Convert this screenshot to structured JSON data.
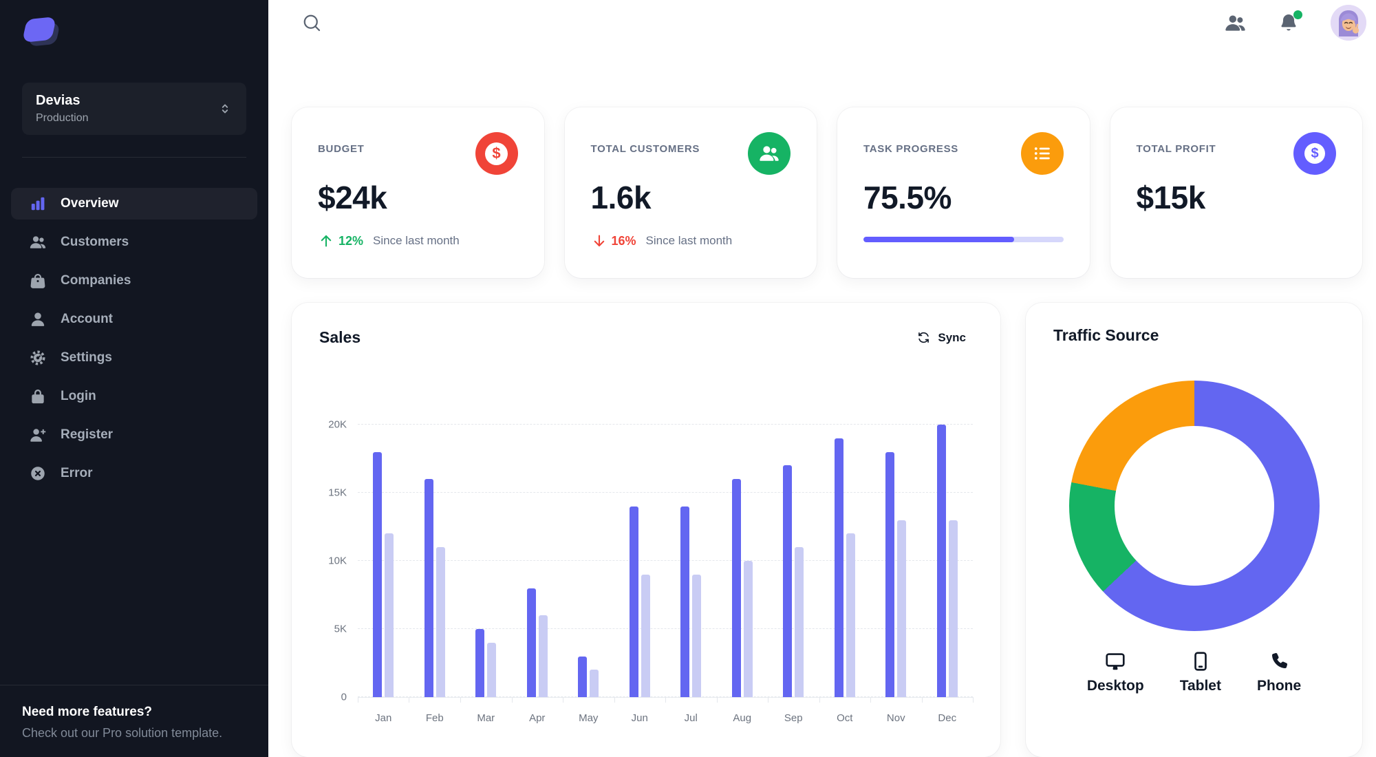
{
  "colors": {
    "primary": "#6366F1",
    "primary_light": "#C9CCF4",
    "sidebar_bg": "#121621",
    "red": "#F04438",
    "green": "#16B364",
    "orange": "#FB9C0C",
    "indigo": "#635DFF",
    "text_dark": "#111927",
    "text_muted": "#667085"
  },
  "sidebar": {
    "workspace": {
      "name": "Devias",
      "environment": "Production"
    },
    "items": [
      {
        "label": "Overview",
        "icon": "chart-bar-icon",
        "active": true
      },
      {
        "label": "Customers",
        "icon": "users-icon",
        "active": false
      },
      {
        "label": "Companies",
        "icon": "shopping-bag-icon",
        "active": false
      },
      {
        "label": "Account",
        "icon": "user-icon",
        "active": false
      },
      {
        "label": "Settings",
        "icon": "gear-icon",
        "active": false
      },
      {
        "label": "Login",
        "icon": "lock-icon",
        "active": false
      },
      {
        "label": "Register",
        "icon": "user-plus-icon",
        "active": false
      },
      {
        "label": "Error",
        "icon": "x-circle-icon",
        "active": false
      }
    ],
    "footer": {
      "title": "Need more features?",
      "subtitle": "Check out our Pro solution template."
    }
  },
  "topbar": {
    "icons": [
      "search",
      "contacts",
      "notifications",
      "avatar"
    ],
    "notification_badge": true
  },
  "stats": [
    {
      "label": "Budget",
      "value": "$24k",
      "icon": "currency-dollar",
      "icon_glyph": "$",
      "icon_bg": "#F04438",
      "trend_direction": "up",
      "trend_value": "12%",
      "trend_color": "#16B364",
      "caption": "Since last month"
    },
    {
      "label": "Total Customers",
      "value": "1.6k",
      "icon": "users",
      "icon_bg": "#16B364",
      "trend_direction": "down",
      "trend_value": "16%",
      "trend_color": "#F04438",
      "caption": "Since last month"
    },
    {
      "label": "Task Progress",
      "value": "75.5%",
      "icon": "list-bullets",
      "icon_bg": "#FB9C0C",
      "progress_percent": 75.5
    },
    {
      "label": "Total Profit",
      "value": "$15k",
      "icon": "currency-dollar",
      "icon_glyph": "$",
      "icon_bg": "#635DFF"
    }
  ],
  "sales_card": {
    "title": "Sales",
    "sync_label": "Sync"
  },
  "traffic_card": {
    "title": "Traffic Source",
    "legend": [
      {
        "label": "Desktop",
        "icon": "desktop-icon"
      },
      {
        "label": "Tablet",
        "icon": "tablet-icon"
      },
      {
        "label": "Phone",
        "icon": "phone-icon"
      }
    ]
  },
  "chart_data": [
    {
      "type": "bar",
      "title": "Sales",
      "categories": [
        "Jan",
        "Feb",
        "Mar",
        "Apr",
        "May",
        "Jun",
        "Jul",
        "Aug",
        "Sep",
        "Oct",
        "Nov",
        "Dec"
      ],
      "series": [
        {
          "name": "Series 1 (dark)",
          "color": "#6366F1",
          "values": [
            18000,
            16000,
            5000,
            8000,
            3000,
            14000,
            14000,
            16000,
            17000,
            19000,
            18000,
            20000
          ]
        },
        {
          "name": "Series 2 (light)",
          "color": "#C9CCF4",
          "values": [
            12000,
            11000,
            4000,
            6000,
            2000,
            9000,
            9000,
            10000,
            11000,
            12000,
            13000,
            13000
          ]
        }
      ],
      "ylim": [
        0,
        20000
      ],
      "ytick_labels": [
        "0",
        "5K",
        "10K",
        "15K",
        "20K"
      ],
      "grid": true,
      "legend_position": "none"
    },
    {
      "type": "pie",
      "title": "Traffic Source",
      "labels": [
        "Desktop",
        "Tablet",
        "Phone"
      ],
      "values": [
        63,
        15,
        22
      ],
      "colors": [
        "#6366F1",
        "#16B364",
        "#FB9C0C"
      ],
      "donut_hole": 0.64,
      "start_angle_deg": 0
    }
  ]
}
